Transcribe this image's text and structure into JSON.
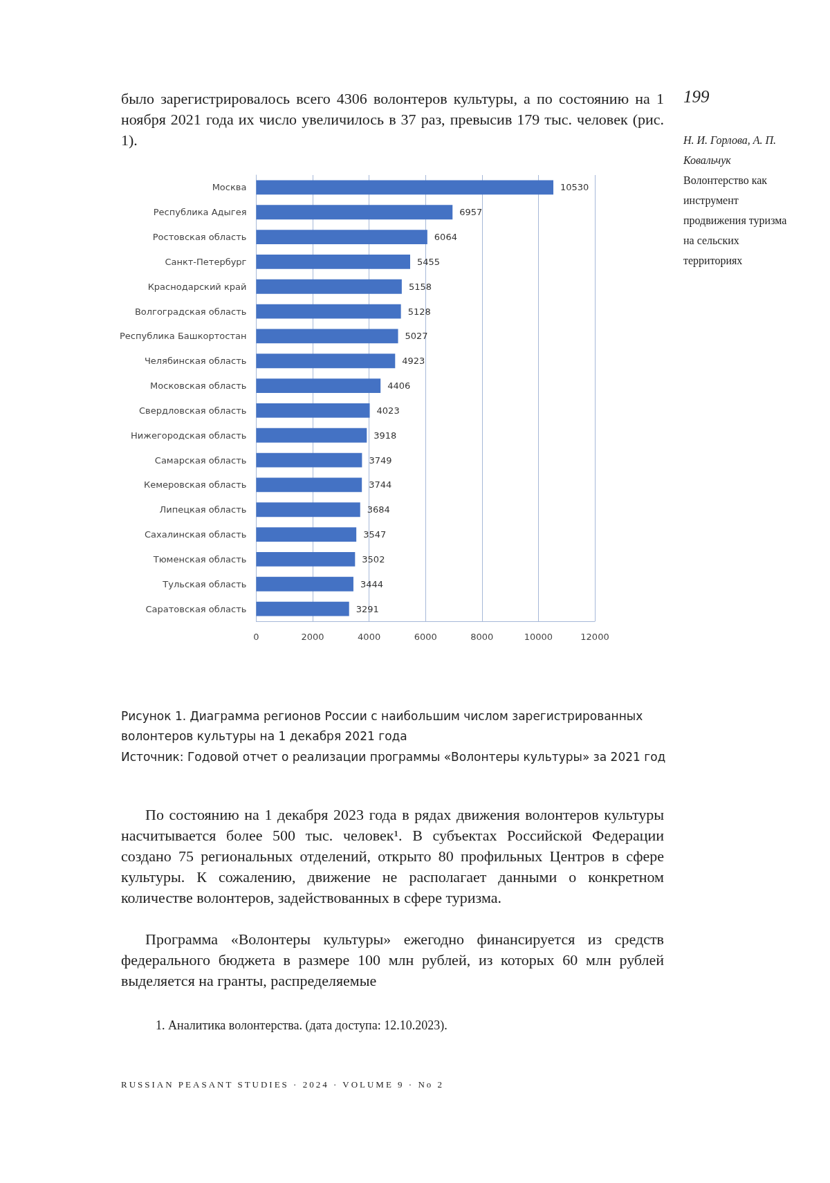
{
  "chart_data": {
    "type": "bar",
    "orientation": "horizontal",
    "title": "Рисунок 1. Диаграмма регионов России с наибольшим числом зарегистрированных волонтеров культуры на 1 декабря 2021 года",
    "categories": [
      "Москва",
      "Республика Адыгея",
      "Ростовская область",
      "Санкт-Петербург",
      "Краснодарский край",
      "Волгоградская область",
      "Республика Башкортостан",
      "Челябинская область",
      "Московская область",
      "Свердловская область",
      "Нижегородская область",
      "Самарская область",
      "Кемеровская область",
      "Липецкая область",
      "Сахалинская область",
      "Тюменская область",
      "Тульская область",
      "Саратовская область"
    ],
    "values": [
      10530,
      6957,
      6064,
      5455,
      5158,
      5128,
      5027,
      4923,
      4406,
      4023,
      3918,
      3749,
      3744,
      3684,
      3547,
      3502,
      3444,
      3291
    ],
    "color": "#4472c4",
    "xlim": [
      0,
      12000
    ],
    "xticks": [
      0,
      2000,
      4000,
      6000,
      8000,
      10000,
      12000
    ],
    "grid": "x",
    "data_labels": true,
    "annotations": [
      "было зарегистрировалось всего 4306 волонтеров культуры, а по состоянию на 1 ноября 2021 года их число увеличилось в 37 раз, превысив 179 тыс. человек (рис. 1).",
      "199",
      "Н. И. Горлова, А. П. Ковальчук",
      "Волонтерство как инструмент продвижения туризма на сельских территориях",
      "Источник: Годовой отчет о реализации программы «Волонтеры культуры» за 2021 год",
      "По состоянию на 1 декабря 2023 года в рядах движения волонтеров культуры насчитывается более 500 тыс. человек¹. В субъектах Российской Федерации создано 75 региональных отделений, открыто 80 профильных Центров в сфере культуры. К сожалению, движение не располагает данными о конкретном количестве волонтеров, задействованных в сфере туризма.",
      "Программа «Волонтеры культуры» ежегодно финансируется из средств федерального бюджета в размере 100 млн рублей, из которых 60 млн рублей выделяется на гранты, распределяемые",
      "1. Аналитика волонтерства. (дата доступа: 12.10.2023).",
      "RUSSIAN PEASANT STUDIES · 2024 · VOLUME 9 · No 2"
    ]
  }
}
